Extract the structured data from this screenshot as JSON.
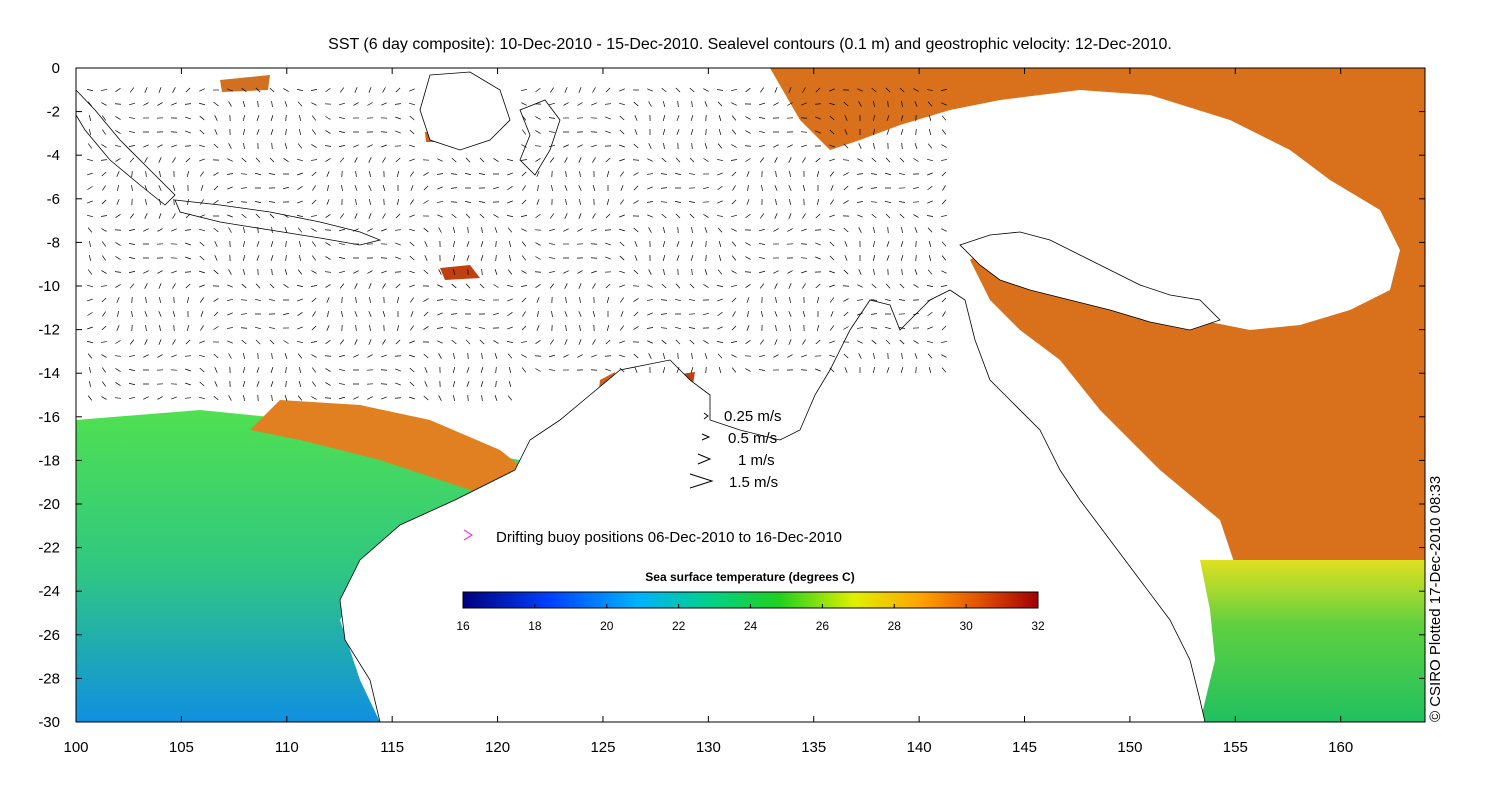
{
  "title": "SST (6 day composite): 10-Dec-2010 - 15-Dec-2010. Sealevel contours (0.1 m) and geostrophic velocity: 12-Dec-2010.",
  "side_credit": "© CSIRO Plotted 17-Dec-2010 08:33",
  "x_ticks": [
    "100",
    "105",
    "110",
    "115",
    "120",
    "125",
    "130",
    "135",
    "140",
    "145",
    "150",
    "155",
    "160"
  ],
  "y_ticks": [
    "0",
    "-2",
    "-4",
    "-6",
    "-8",
    "-10",
    "-12",
    "-14",
    "-16",
    "-18",
    "-20",
    "-22",
    "-24",
    "-26",
    "-28",
    "-30"
  ],
  "velocity_legend": [
    "0.25 m/s",
    "0.5 m/s",
    "1 m/s",
    "1.5 m/s"
  ],
  "buoy_legend": "Drifting buoy positions 06-Dec-2010 to 16-Dec-2010",
  "colorbar": {
    "title": "Sea surface temperature (degrees C)",
    "ticks": [
      "16",
      "18",
      "20",
      "22",
      "24",
      "26",
      "28",
      "30",
      "32"
    ]
  },
  "colors": {
    "buoy": "#e040e0",
    "land": "#ffffff",
    "coast": "#000000"
  }
}
